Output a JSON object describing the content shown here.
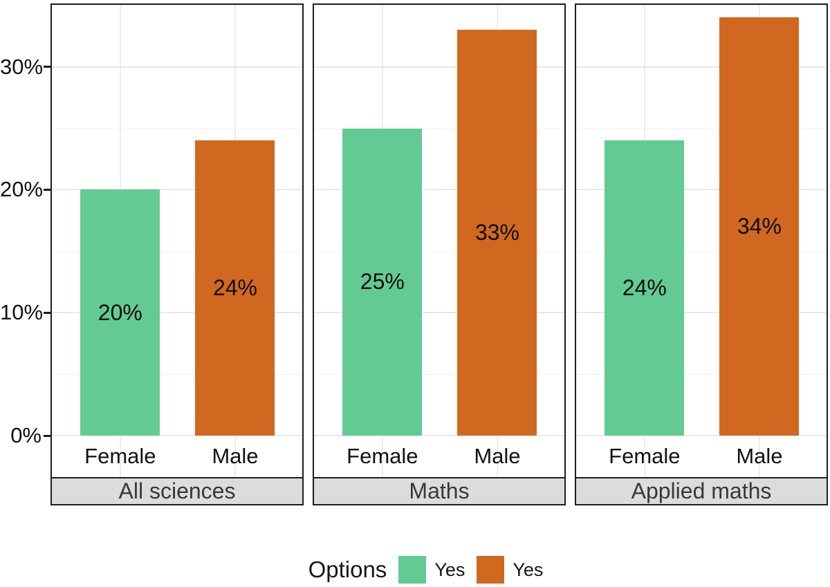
{
  "chart_data": {
    "type": "bar",
    "title": "",
    "xlabel": "",
    "ylabel": "",
    "categories": [
      "Female",
      "Male"
    ],
    "facets": [
      {
        "label": "All sciences",
        "values": [
          20,
          24
        ],
        "bar_labels": [
          "20%",
          "24%"
        ]
      },
      {
        "label": "Maths",
        "values": [
          25,
          33
        ],
        "bar_labels": [
          "25%",
          "33%"
        ]
      },
      {
        "label": "Applied maths",
        "values": [
          24,
          34
        ],
        "bar_labels": [
          "24%",
          "34%"
        ]
      }
    ],
    "series_colors": [
      "#63CA93",
      "#D0691F"
    ],
    "y_ticks": [
      "0%",
      "10%",
      "20%",
      "30%"
    ],
    "y_tick_values": [
      0,
      10,
      20,
      30
    ],
    "ylim": [
      0,
      35
    ],
    "grid": {
      "major": [
        0,
        10,
        20,
        30
      ],
      "minor": [
        5,
        15,
        25,
        35
      ],
      "on": true
    },
    "legend": {
      "position": "bottom",
      "title": "Options",
      "entries": [
        {
          "label": "Yes",
          "color": "#63CA93"
        },
        {
          "label": "Yes",
          "color": "#D0691F"
        }
      ]
    },
    "colors": {
      "female_bar": "#63CA93",
      "male_bar": "#D0691F",
      "strip_background": "#DCDCDC",
      "strip_text": "#383838",
      "panel_border": "#1C1C1C",
      "grid_major": "#E8E8E8",
      "grid_minor": "#F2F2F2",
      "text": "#111111"
    }
  }
}
